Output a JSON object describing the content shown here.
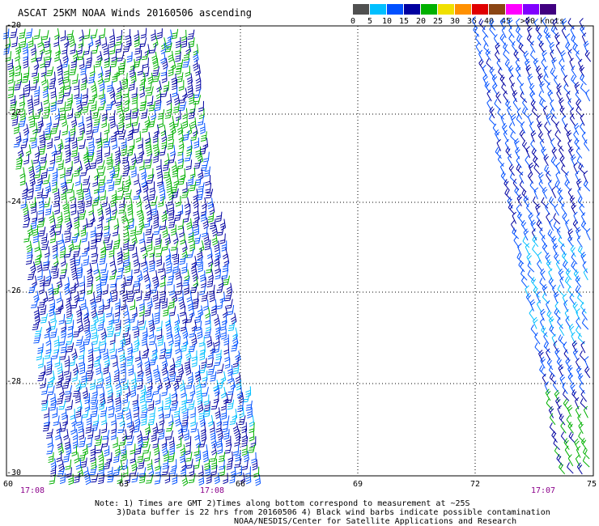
{
  "title": "ASCAT 25KM NOAA Winds 20160506 ascending",
  "colorbar": {
    "colors": [
      "#505050",
      "#00bfff",
      "#0050ff",
      "#0000a0",
      "#00b000",
      "#f0e000",
      "#ff9000",
      "#e00000",
      "#8b4513",
      "#ff00ff",
      "#8000ff",
      "#400080"
    ],
    "labels": [
      "0",
      "5",
      "10",
      "15",
      "20",
      "25",
      "30",
      "35",
      "40",
      "45",
      ">50 knots"
    ]
  },
  "lat_labels": [
    "-20",
    "-22",
    "-24",
    "-26",
    "-28",
    "-30"
  ],
  "lon_labels": [
    "60",
    "63",
    "66",
    "69",
    "72",
    "75"
  ],
  "pass_times": [
    "17:08",
    "17:08",
    "17:07"
  ],
  "notes": [
    "Note: 1) Times are GMT 2)Times along bottom correspond to measurement at ~25S",
    "3)Data buffer is 22 hrs from 20160506 4) Black wind barbs indicate possible contamination",
    "NOAA/NESDIS/Center for Satellite Applications and Research"
  ],
  "wind_swaths": [
    {
      "name": "western-pass",
      "speed_range_knots": [
        10,
        25
      ],
      "dominant_colors": [
        "#0000a0",
        "#0050ff",
        "#00b000"
      ]
    },
    {
      "name": "eastern-pass",
      "speed_range_knots": [
        10,
        20
      ],
      "dominant_colors": [
        "#0050ff",
        "#00b000"
      ]
    }
  ]
}
